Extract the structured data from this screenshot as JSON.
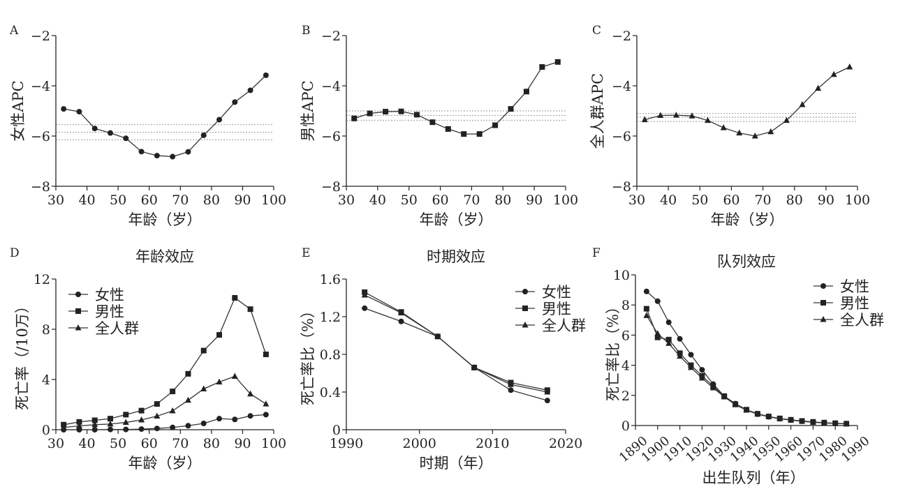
{
  "chart_data": [
    {
      "panel": "A",
      "type": "line",
      "title": "",
      "xlabel": "年龄（岁）",
      "ylabel": "女性APC",
      "xlim": [
        30,
        100
      ],
      "ylim": [
        -8,
        -2
      ],
      "xticks": [
        30,
        40,
        50,
        60,
        70,
        80,
        90,
        100
      ],
      "yticks": [
        -8,
        -6,
        -4,
        -2
      ],
      "marker": "circle",
      "x": [
        32.5,
        37.5,
        42.5,
        47.5,
        52.5,
        57.5,
        62.5,
        67.5,
        72.5,
        77.5,
        82.5,
        87.5,
        92.5,
        97.5
      ],
      "values": [
        -4.92,
        -5.03,
        -5.7,
        -5.88,
        -6.09,
        -6.62,
        -6.78,
        -6.82,
        -6.63,
        -5.97,
        -5.35,
        -4.65,
        -4.18,
        -3.58
      ],
      "ref_lines": [
        -5.55,
        -5.85,
        -6.15
      ]
    },
    {
      "panel": "B",
      "type": "line",
      "title": "",
      "xlabel": "年龄（岁）",
      "ylabel": "男性APC",
      "xlim": [
        30,
        100
      ],
      "ylim": [
        -8,
        -2
      ],
      "xticks": [
        30,
        40,
        50,
        60,
        70,
        80,
        90,
        100
      ],
      "yticks": [
        -8,
        -6,
        -4,
        -2
      ],
      "marker": "square",
      "x": [
        32.5,
        37.5,
        42.5,
        47.5,
        52.5,
        57.5,
        62.5,
        67.5,
        72.5,
        77.5,
        82.5,
        87.5,
        92.5,
        97.5
      ],
      "values": [
        -5.3,
        -5.1,
        -5.03,
        -5.02,
        -5.15,
        -5.45,
        -5.72,
        -5.92,
        -5.92,
        -5.57,
        -4.92,
        -4.23,
        -3.25,
        -3.05
      ],
      "ref_lines": [
        -5.0,
        -5.18,
        -5.37
      ]
    },
    {
      "panel": "C",
      "type": "line",
      "title": "",
      "xlabel": "年龄（岁）",
      "ylabel": "全人群APC",
      "xlim": [
        30,
        100
      ],
      "ylim": [
        -8,
        -2
      ],
      "xticks": [
        30,
        40,
        50,
        60,
        70,
        80,
        90,
        100
      ],
      "yticks": [
        -8,
        -6,
        -4,
        -2
      ],
      "marker": "triangle",
      "x": [
        32.5,
        37.5,
        42.5,
        47.5,
        52.5,
        57.5,
        62.5,
        67.5,
        72.5,
        77.5,
        82.5,
        87.5,
        92.5,
        97.5
      ],
      "values": [
        -5.35,
        -5.18,
        -5.17,
        -5.2,
        -5.38,
        -5.67,
        -5.88,
        -6.0,
        -5.83,
        -5.38,
        -4.75,
        -4.1,
        -3.55,
        -3.25
      ],
      "ref_lines": [
        -5.1,
        -5.25,
        -5.42
      ]
    },
    {
      "panel": "D",
      "type": "line",
      "title": "年龄效应",
      "xlabel": "年龄（岁）",
      "ylabel": "死亡率（/10万）",
      "xlim": [
        30,
        100
      ],
      "ylim": [
        0,
        12
      ],
      "xticks": [
        30,
        40,
        50,
        60,
        70,
        80,
        90,
        100
      ],
      "yticks": [
        0,
        4,
        8,
        12
      ],
      "x": [
        32.5,
        37.5,
        42.5,
        47.5,
        52.5,
        57.5,
        62.5,
        67.5,
        72.5,
        77.5,
        82.5,
        87.5,
        92.5,
        97.5
      ],
      "legend_position": "top-left",
      "series": [
        {
          "name": "女性",
          "marker": "circle",
          "values": [
            0.0,
            0.0,
            0.0,
            0.02,
            0.02,
            0.05,
            0.1,
            0.18,
            0.32,
            0.5,
            0.88,
            0.82,
            1.1,
            1.2
          ]
        },
        {
          "name": "男性",
          "marker": "square",
          "values": [
            0.4,
            0.62,
            0.75,
            0.88,
            1.2,
            1.52,
            2.05,
            3.05,
            4.45,
            6.3,
            7.55,
            10.5,
            9.6,
            6.0
          ]
        },
        {
          "name": "全人群",
          "marker": "triangle",
          "values": [
            0.18,
            0.3,
            0.4,
            0.45,
            0.58,
            0.78,
            1.08,
            1.5,
            2.35,
            3.25,
            3.8,
            4.25,
            2.85,
            2.05
          ]
        }
      ]
    },
    {
      "panel": "E",
      "type": "line",
      "title": "时期效应",
      "xlabel": "时期（年）",
      "ylabel": "死亡率比（%）",
      "xlim": [
        1990,
        2020
      ],
      "ylim": [
        0,
        1.6
      ],
      "xticks": [
        1990,
        2000,
        2010,
        2020
      ],
      "yticks": [
        0,
        0.4,
        0.8,
        1.2,
        1.6
      ],
      "x": [
        1992.5,
        1997.5,
        2002.5,
        2007.5,
        2012.5,
        2017.5
      ],
      "legend_position": "top-right",
      "series": [
        {
          "name": "女性",
          "marker": "circle",
          "values": [
            1.29,
            1.15,
            0.99,
            0.66,
            0.42,
            0.31
          ]
        },
        {
          "name": "男性",
          "marker": "square",
          "values": [
            1.46,
            1.25,
            0.99,
            0.66,
            0.5,
            0.42
          ]
        },
        {
          "name": "全人群",
          "marker": "triangle",
          "values": [
            1.43,
            1.24,
            0.99,
            0.66,
            0.48,
            0.4
          ]
        }
      ]
    },
    {
      "panel": "F",
      "type": "line",
      "title": "队列效应",
      "xlabel": "出生队列（年）",
      "ylabel": "死亡率比（%）",
      "xlim": [
        1890,
        1990
      ],
      "ylim": [
        0,
        10
      ],
      "xticks": [
        1890,
        1900,
        1910,
        1920,
        1930,
        1940,
        1950,
        1960,
        1970,
        1980,
        1990
      ],
      "yticks": [
        0,
        2,
        4,
        6,
        8,
        10
      ],
      "x": [
        1895,
        1900,
        1905,
        1910,
        1915,
        1920,
        1925,
        1930,
        1935,
        1940,
        1945,
        1950,
        1955,
        1960,
        1965,
        1970,
        1975,
        1980,
        1985
      ],
      "legend_position": "top-right",
      "series": [
        {
          "name": "女性",
          "marker": "circle",
          "values": [
            8.9,
            8.25,
            6.85,
            5.75,
            4.7,
            3.7,
            2.75,
            1.95,
            1.45,
            1.05,
            0.75,
            0.58,
            0.45,
            0.36,
            0.28,
            0.22,
            0.17,
            0.14,
            0.12
          ]
        },
        {
          "name": "男性",
          "marker": "square",
          "values": [
            7.75,
            5.85,
            5.7,
            4.8,
            4.0,
            3.3,
            2.6,
            1.95,
            1.42,
            1.05,
            0.78,
            0.6,
            0.47,
            0.38,
            0.3,
            0.24,
            0.19,
            0.15,
            0.12
          ]
        },
        {
          "name": "全人群",
          "marker": "triangle",
          "values": [
            7.3,
            6.1,
            5.45,
            4.6,
            3.85,
            3.15,
            2.5,
            1.9,
            1.38,
            1.02,
            0.75,
            0.58,
            0.45,
            0.36,
            0.28,
            0.22,
            0.18,
            0.14,
            0.11
          ]
        }
      ]
    }
  ]
}
